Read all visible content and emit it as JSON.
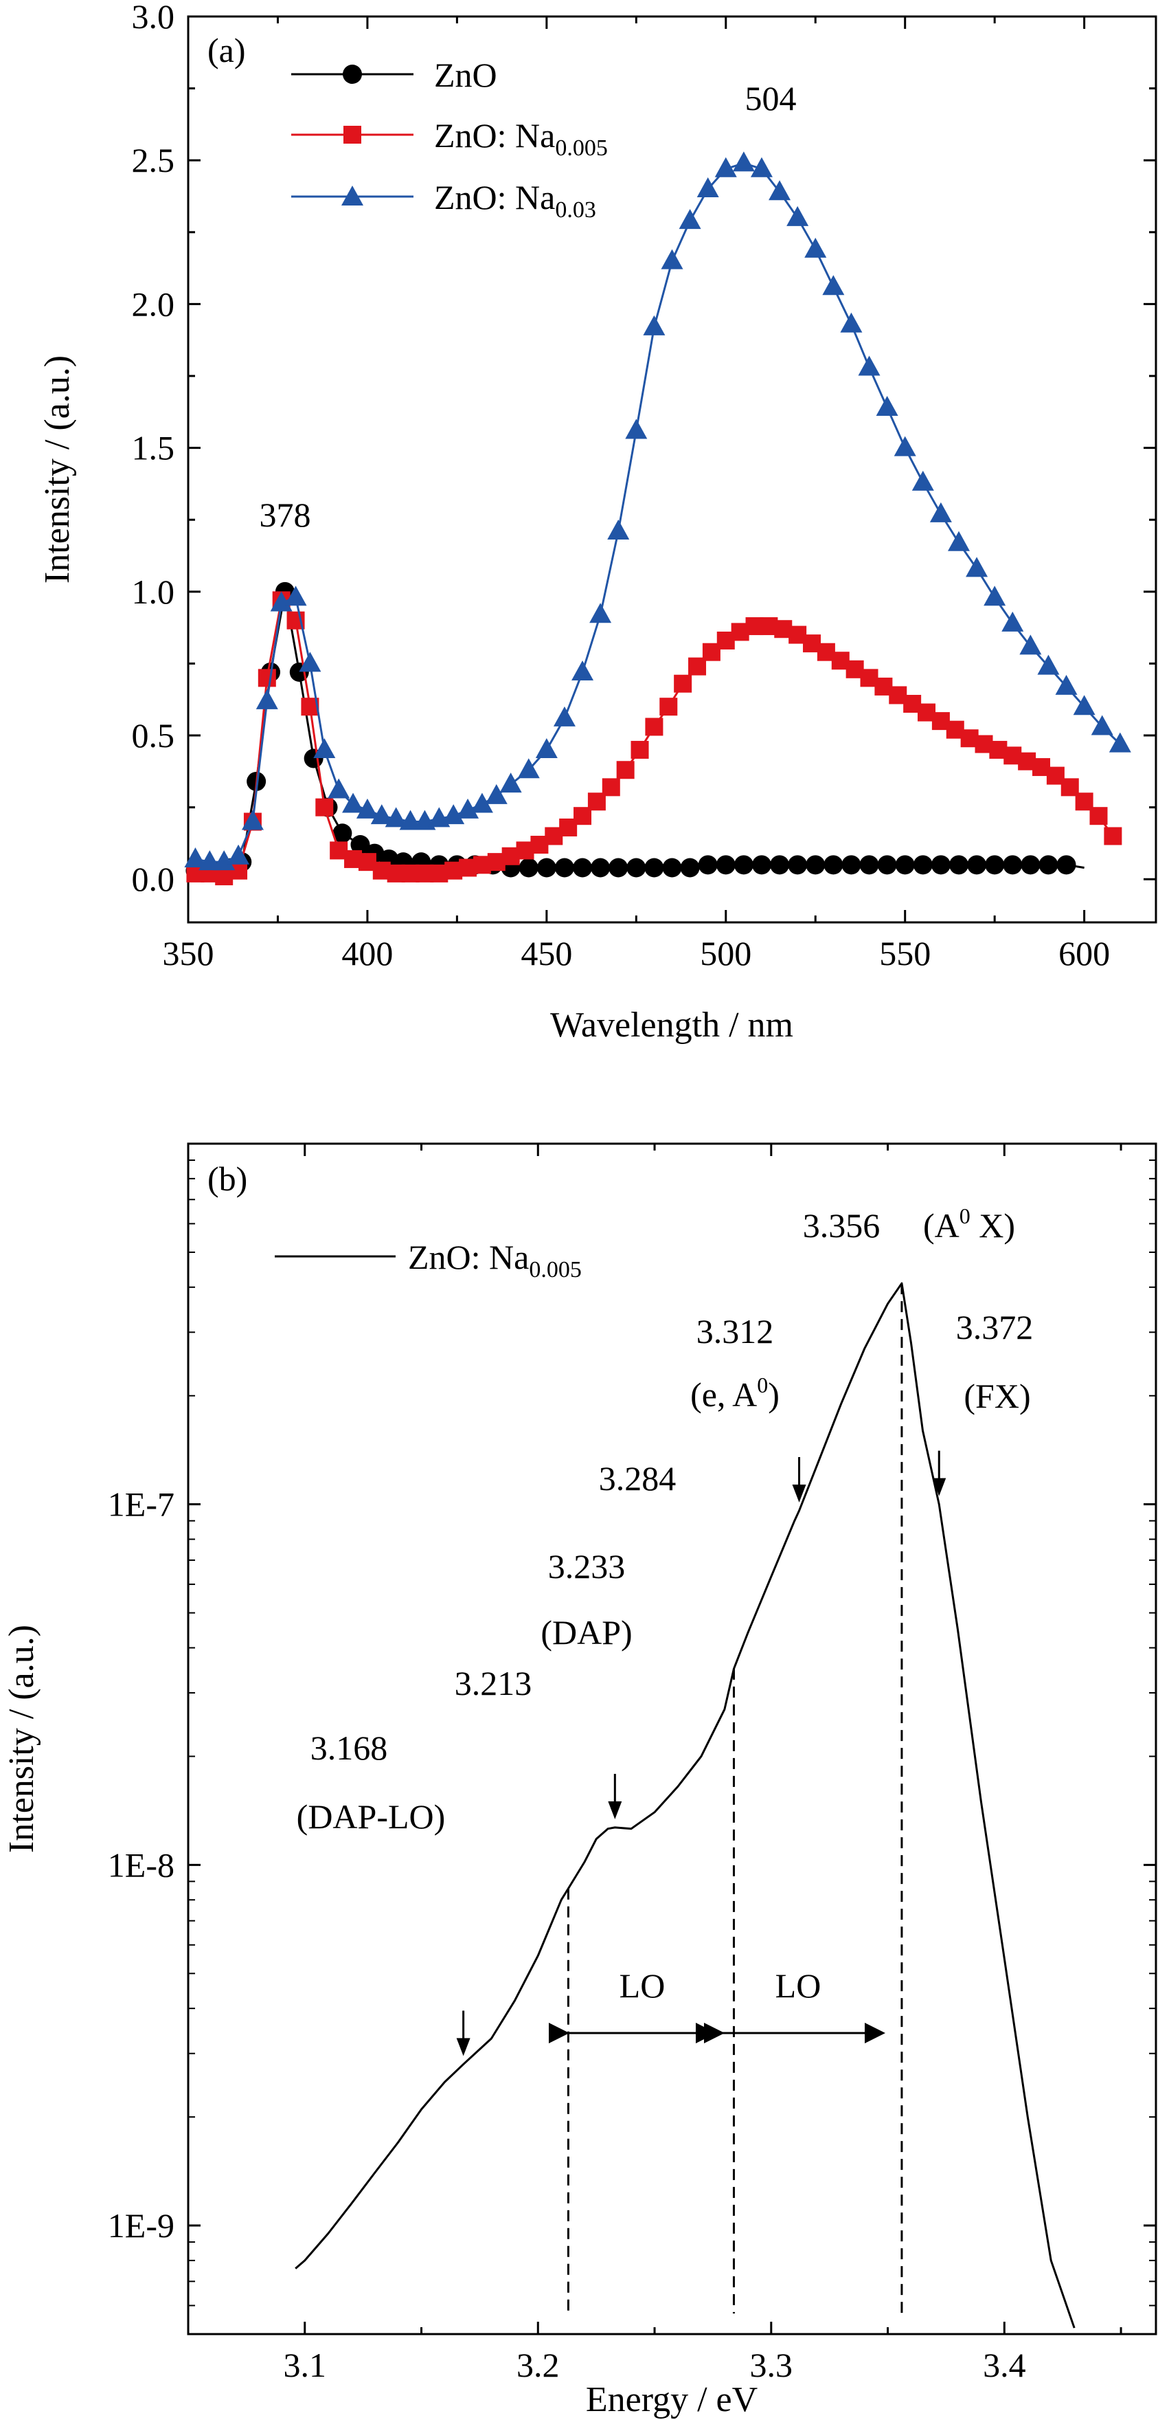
{
  "chart_data": [
    {
      "type": "line",
      "panel_label": "(a)",
      "xlabel": "Wavelength / nm",
      "ylabel": "Intensity / (a.u.)",
      "xlim": [
        350,
        620
      ],
      "ylim": [
        -0.15,
        3.0
      ],
      "x_ticks": [
        "350",
        "400",
        "450",
        "500",
        "550",
        "600"
      ],
      "y_ticks": [
        "0.0",
        "0.5",
        "1.0",
        "1.5",
        "2.0",
        "2.5",
        "3.0"
      ],
      "grid": false,
      "legend_position": "top-left",
      "series": [
        {
          "name": "ZnO",
          "name_sub": "",
          "color": "#000000",
          "marker": "circle",
          "x": [
            352,
            357,
            362,
            365,
            369,
            373,
            377,
            381,
            385,
            389,
            393,
            398,
            402,
            406,
            410,
            415,
            420,
            425,
            430,
            435,
            440,
            445,
            450,
            455,
            460,
            465,
            470,
            475,
            480,
            485,
            490,
            495,
            500,
            505,
            510,
            515,
            520,
            525,
            530,
            535,
            540,
            545,
            550,
            555,
            560,
            565,
            570,
            575,
            580,
            585,
            590,
            595
          ],
          "y": [
            0.03,
            0.03,
            0.04,
            0.06,
            0.34,
            0.72,
            1.0,
            0.72,
            0.42,
            0.25,
            0.16,
            0.12,
            0.09,
            0.07,
            0.06,
            0.06,
            0.05,
            0.05,
            0.05,
            0.05,
            0.04,
            0.04,
            0.04,
            0.04,
            0.04,
            0.04,
            0.04,
            0.04,
            0.04,
            0.04,
            0.04,
            0.05,
            0.05,
            0.05,
            0.05,
            0.05,
            0.05,
            0.05,
            0.05,
            0.05,
            0.05,
            0.05,
            0.05,
            0.05,
            0.05,
            0.05,
            0.05,
            0.05,
            0.05,
            0.05,
            0.05,
            0.05
          ],
          "line_to_x": 600
        },
        {
          "name": "ZnO: Na",
          "name_sub": "0.005",
          "color": "#e0141c",
          "marker": "square",
          "x": [
            352,
            356,
            360,
            364,
            368,
            372,
            376,
            380,
            384,
            388,
            392,
            396,
            400,
            404,
            408,
            412,
            416,
            420,
            424,
            428,
            432,
            436,
            440,
            444,
            448,
            452,
            456,
            460,
            464,
            468,
            472,
            476,
            480,
            484,
            488,
            492,
            496,
            500,
            504,
            508,
            512,
            516,
            520,
            524,
            528,
            532,
            536,
            540,
            544,
            548,
            552,
            556,
            560,
            564,
            568,
            572,
            576,
            580,
            584,
            588,
            592,
            596,
            600,
            604,
            608
          ],
          "y": [
            0.02,
            0.02,
            0.01,
            0.03,
            0.2,
            0.7,
            0.97,
            0.9,
            0.6,
            0.25,
            0.1,
            0.07,
            0.06,
            0.03,
            0.02,
            0.02,
            0.02,
            0.02,
            0.03,
            0.04,
            0.05,
            0.06,
            0.08,
            0.1,
            0.12,
            0.15,
            0.18,
            0.22,
            0.27,
            0.32,
            0.38,
            0.45,
            0.53,
            0.6,
            0.68,
            0.74,
            0.79,
            0.83,
            0.86,
            0.88,
            0.88,
            0.87,
            0.85,
            0.82,
            0.79,
            0.76,
            0.73,
            0.7,
            0.67,
            0.64,
            0.61,
            0.58,
            0.55,
            0.52,
            0.49,
            0.47,
            0.45,
            0.43,
            0.41,
            0.39,
            0.36,
            0.32,
            0.27,
            0.22,
            0.15
          ],
          "line_to_x": 608
        },
        {
          "name": "ZnO: Na",
          "name_sub": "0.03",
          "color": "#2155a6",
          "marker": "triangle",
          "x": [
            352,
            356,
            360,
            364,
            368,
            372,
            376,
            380,
            384,
            388,
            392,
            396,
            400,
            404,
            408,
            412,
            416,
            420,
            424,
            428,
            432,
            436,
            440,
            445,
            450,
            455,
            460,
            465,
            470,
            475,
            480,
            485,
            490,
            495,
            500,
            505,
            510,
            515,
            520,
            525,
            530,
            535,
            540,
            545,
            550,
            555,
            560,
            565,
            570,
            575,
            580,
            585,
            590,
            595,
            600,
            605,
            610
          ],
          "y": [
            0.07,
            0.06,
            0.06,
            0.08,
            0.2,
            0.62,
            0.96,
            0.98,
            0.75,
            0.45,
            0.31,
            0.26,
            0.24,
            0.22,
            0.21,
            0.2,
            0.2,
            0.21,
            0.22,
            0.24,
            0.26,
            0.29,
            0.33,
            0.38,
            0.45,
            0.56,
            0.72,
            0.92,
            1.21,
            1.56,
            1.92,
            2.15,
            2.29,
            2.4,
            2.47,
            2.49,
            2.47,
            2.39,
            2.3,
            2.19,
            2.06,
            1.93,
            1.78,
            1.64,
            1.5,
            1.38,
            1.27,
            1.17,
            1.08,
            0.98,
            0.89,
            0.81,
            0.74,
            0.67,
            0.6,
            0.53,
            0.47
          ],
          "line_to_x": 612
        }
      ],
      "annotations": [
        {
          "text": "378",
          "x": 378,
          "y": 1.0
        },
        {
          "text": "504",
          "x": 504,
          "y": 2.5
        }
      ]
    },
    {
      "type": "line",
      "panel_label": "(b)",
      "xlabel": "Energy / eV",
      "ylabel": "Intensity / (a.u.)",
      "xlim": [
        3.05,
        3.465
      ],
      "ylim": [
        5e-10,
        1e-06
      ],
      "yscale": "log",
      "x_ticks": [
        "3.1",
        "3.2",
        "3.3",
        "3.4"
      ],
      "x_tick_values": [
        3.1,
        3.2,
        3.3,
        3.4
      ],
      "y_ticks": [
        "1E-9",
        "1E-8",
        "1E-7"
      ],
      "y_tick_values": [
        1e-09,
        1e-08,
        1e-07
      ],
      "grid": false,
      "legend_position": "top-left",
      "series": [
        {
          "name": "ZnO: Na",
          "name_sub": "0.005",
          "color": "#000000",
          "x": [
            3.096,
            3.1,
            3.11,
            3.12,
            3.13,
            3.14,
            3.15,
            3.16,
            3.168,
            3.18,
            3.19,
            3.2,
            3.21,
            3.213,
            3.22,
            3.225,
            3.23,
            3.233,
            3.24,
            3.25,
            3.26,
            3.27,
            3.28,
            3.284,
            3.29,
            3.3,
            3.31,
            3.312,
            3.32,
            3.33,
            3.34,
            3.35,
            3.356,
            3.36,
            3.365,
            3.372,
            3.38,
            3.39,
            3.4,
            3.41,
            3.42,
            3.43
          ],
          "y": [
            7.6e-10,
            8e-10,
            9.5e-10,
            1.15e-09,
            1.4e-09,
            1.7e-09,
            2.1e-09,
            2.5e-09,
            2.8e-09,
            3.3e-09,
            4.2e-09,
            5.6e-09,
            8e-09,
            8.6e-09,
            1.02e-08,
            1.18e-08,
            1.26e-08,
            1.27e-08,
            1.26e-08,
            1.4e-08,
            1.65e-08,
            2e-08,
            2.7e-08,
            3.5e-08,
            4.4e-08,
            6.3e-08,
            9e-08,
            9.6e-08,
            1.3e-07,
            1.9e-07,
            2.7e-07,
            3.6e-07,
            4.1e-07,
            2.8e-07,
            1.6e-07,
            1e-07,
            4.5e-08,
            1.5e-08,
            5.5e-09,
            2e-09,
            8e-10,
            5.2e-10
          ]
        }
      ],
      "annotations": [
        {
          "text": "3.356",
          "x": 3.356
        },
        {
          "text": "(A",
          "sup": "0",
          "tail": " X)",
          "x": 3.356
        },
        {
          "text": "3.372",
          "x": 3.372
        },
        {
          "text": "(FX)",
          "x": 3.372
        },
        {
          "text": "3.312",
          "x": 3.312
        },
        {
          "text": "(e, A",
          "sup": "0",
          "tail": ")",
          "x": 3.312
        },
        {
          "text": "3.284",
          "x": 3.284
        },
        {
          "text": "3.233",
          "x": 3.233
        },
        {
          "text": "(DAP)",
          "x": 3.233
        },
        {
          "text": "3.213",
          "x": 3.213
        },
        {
          "text": "3.168",
          "x": 3.168
        },
        {
          "text": "(DAP-LO)",
          "x": 3.168
        },
        {
          "text": "LO",
          "x_range": [
            3.213,
            3.284
          ]
        },
        {
          "text": "LO",
          "x_range": [
            3.284,
            3.356
          ]
        }
      ],
      "arrows_at": [
        3.168,
        3.233,
        3.312,
        3.372
      ],
      "dashed_lines_at": [
        3.213,
        3.284,
        3.356
      ]
    }
  ]
}
